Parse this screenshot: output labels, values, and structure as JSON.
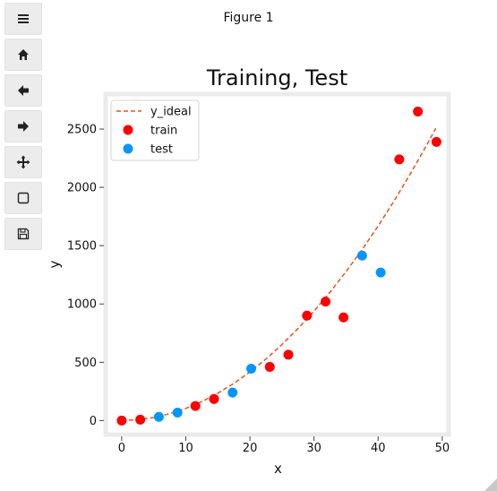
{
  "window": {
    "figure_title": "Figure 1"
  },
  "toolbar": {
    "buttons": [
      {
        "name": "menu-button",
        "icon": "menu-icon"
      },
      {
        "name": "home-button",
        "icon": "home-icon"
      },
      {
        "name": "back-button",
        "icon": "arrow-left-icon"
      },
      {
        "name": "forward-button",
        "icon": "arrow-right-icon"
      },
      {
        "name": "pan-button",
        "icon": "move-icon"
      },
      {
        "name": "zoom-button",
        "icon": "square-icon"
      },
      {
        "name": "save-button",
        "icon": "save-icon"
      }
    ]
  },
  "chart_data": {
    "type": "scatter",
    "title": "Training, Test",
    "xlabel": "x",
    "ylabel": "y",
    "xlim": [
      -2.5,
      51
    ],
    "ylim": [
      -120,
      2800
    ],
    "xticks": [
      0,
      10,
      20,
      30,
      40,
      50
    ],
    "yticks": [
      0,
      500,
      1000,
      1500,
      2000,
      2500
    ],
    "grid": false,
    "legend_position": "top-left",
    "series": [
      {
        "name": "y_ideal",
        "kind": "line",
        "style": "dashed",
        "color": "#e8541c",
        "x": [
          0,
          2.5,
          5,
          7.5,
          10,
          12.5,
          15,
          17.5,
          20,
          22.5,
          25,
          27.5,
          30,
          32.5,
          35,
          37.5,
          40,
          42.5,
          45,
          47.5,
          49
        ],
        "y": [
          0,
          7,
          26,
          59,
          104,
          163,
          235,
          319,
          417,
          528,
          652,
          789,
          939,
          1102,
          1278,
          1467,
          1669,
          1884,
          2113,
          2354,
          2507
        ]
      },
      {
        "name": "train",
        "kind": "scatter",
        "color": "#ff0000",
        "x": [
          0,
          2.9,
          11.5,
          14.4,
          23.1,
          26,
          28.9,
          31.8,
          34.6,
          43.3,
          46.2,
          49.1
        ],
        "y": [
          0,
          8,
          125,
          185,
          460,
          565,
          900,
          1020,
          885,
          2240,
          2650,
          2390
        ]
      },
      {
        "name": "test",
        "kind": "scatter",
        "color": "#0496ff",
        "x": [
          5.8,
          8.7,
          17.3,
          20.2,
          37.5,
          40.4
        ],
        "y": [
          32,
          68,
          240,
          445,
          1415,
          1270
        ]
      }
    ]
  }
}
